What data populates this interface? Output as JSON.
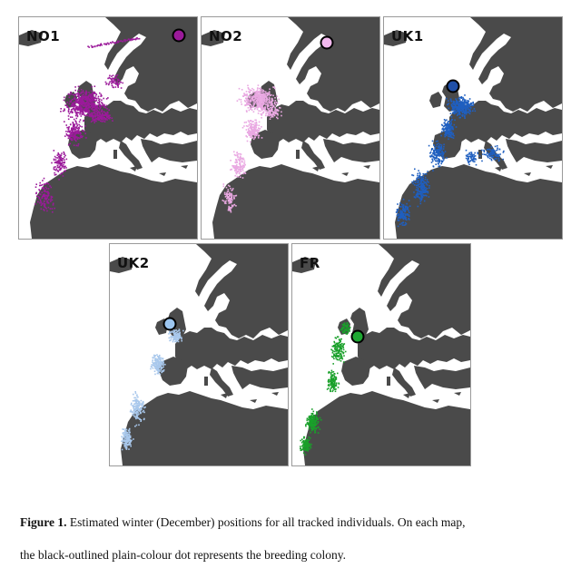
{
  "maps": [
    {
      "id": "NO1",
      "label": "NO1",
      "color": "#9b1a9a",
      "colony_color": "#9b1a9a"
    },
    {
      "id": "NO2",
      "label": "NO2",
      "color": "#e9a8e2",
      "colony_color": "#f2b8ee"
    },
    {
      "id": "UK1",
      "label": "UK1",
      "color": "#1f5fc0",
      "colony_color": "#1f4fa8"
    },
    {
      "id": "UK2",
      "label": "UK2",
      "color": "#a9c8ec",
      "colony_color": "#9cc6f0"
    },
    {
      "id": "FR",
      "label": "FR",
      "color": "#19a02a",
      "colony_color": "#1ea832"
    }
  ],
  "land_color": "#4a4a4a",
  "caption": {
    "bold": "Figure 1.",
    "text_line1": " Estimated winter (December) positions for all tracked individuals. On each map,",
    "text_line2": "the black-outlined plain-colour dot represents the breeding colony."
  }
}
